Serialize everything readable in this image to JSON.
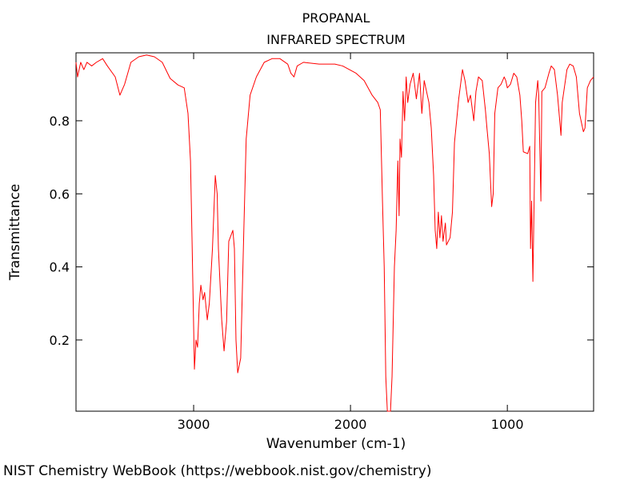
{
  "chart_data": {
    "type": "line",
    "title": "PROPANAL",
    "subtitle": "INFRARED SPECTRUM",
    "x_label": "Wavenumber (cm-1)",
    "y_label": "Transmittance",
    "source": "NIST Chemistry WebBook (https://webbook.nist.gov/chemistry)",
    "color": "#ff0000",
    "xlim": [
      3750,
      450
    ],
    "ylim": [
      0.005,
      0.986
    ],
    "xticks": [
      3000,
      2000,
      1000
    ],
    "yticks": [
      0.2,
      0.4,
      0.6,
      0.8
    ],
    "x": [
      3750,
      3740,
      3720,
      3700,
      3680,
      3650,
      3620,
      3580,
      3550,
      3500,
      3470,
      3440,
      3400,
      3350,
      3300,
      3250,
      3200,
      3150,
      3100,
      3060,
      3036,
      3020,
      3010,
      2995,
      2985,
      2975,
      2964,
      2954,
      2940,
      2930,
      2913,
      2900,
      2880,
      2862,
      2850,
      2842,
      2821,
      2806,
      2790,
      2776,
      2750,
      2740,
      2730,
      2719,
      2700,
      2680,
      2665,
      2640,
      2600,
      2550,
      2500,
      2450,
      2400,
      2380,
      2360,
      2340,
      2300,
      2200,
      2100,
      2050,
      1964,
      1913,
      1862,
      1826,
      1810,
      1796,
      1785,
      1775,
      1765,
      1745,
      1735,
      1720,
      1709,
      1698,
      1690,
      1684,
      1675,
      1665,
      1655,
      1645,
      1635,
      1620,
      1600,
      1580,
      1560,
      1545,
      1530,
      1500,
      1485,
      1470,
      1460,
      1450,
      1440,
      1430,
      1420,
      1410,
      1395,
      1388,
      1365,
      1350,
      1337,
      1310,
      1286,
      1270,
      1250,
      1235,
      1214,
      1200,
      1184,
      1160,
      1140,
      1130,
      1115,
      1100,
      1090,
      1080,
      1060,
      1040,
      1020,
      1010,
      1000,
      980,
      959,
      940,
      920,
      908,
      898,
      870,
      857,
      852,
      845,
      837,
      830,
      820,
      806,
      800,
      786,
      780,
      760,
      735,
      720,
      700,
      680,
      658,
      650,
      620,
      602,
      580,
      560,
      540,
      515,
      505,
      490,
      470,
      450
    ],
    "values": [
      0.96,
      0.92,
      0.96,
      0.94,
      0.96,
      0.95,
      0.96,
      0.97,
      0.95,
      0.92,
      0.87,
      0.9,
      0.96,
      0.975,
      0.98,
      0.975,
      0.96,
      0.916,
      0.898,
      0.89,
      0.82,
      0.69,
      0.47,
      0.12,
      0.2,
      0.18,
      0.3,
      0.35,
      0.31,
      0.33,
      0.255,
      0.3,
      0.45,
      0.65,
      0.6,
      0.45,
      0.255,
      0.17,
      0.25,
      0.47,
      0.5,
      0.45,
      0.2,
      0.11,
      0.15,
      0.5,
      0.75,
      0.87,
      0.92,
      0.96,
      0.97,
      0.97,
      0.955,
      0.93,
      0.92,
      0.95,
      0.96,
      0.955,
      0.955,
      0.95,
      0.93,
      0.91,
      0.87,
      0.85,
      0.83,
      0.58,
      0.4,
      0.1,
      0.005,
      0.005,
      0.1,
      0.4,
      0.5,
      0.69,
      0.54,
      0.75,
      0.7,
      0.88,
      0.8,
      0.92,
      0.85,
      0.9,
      0.93,
      0.86,
      0.93,
      0.82,
      0.91,
      0.85,
      0.78,
      0.65,
      0.5,
      0.45,
      0.55,
      0.48,
      0.54,
      0.47,
      0.52,
      0.46,
      0.48,
      0.55,
      0.74,
      0.86,
      0.94,
      0.91,
      0.85,
      0.87,
      0.8,
      0.88,
      0.92,
      0.91,
      0.83,
      0.78,
      0.71,
      0.565,
      0.6,
      0.82,
      0.89,
      0.9,
      0.92,
      0.91,
      0.89,
      0.9,
      0.93,
      0.92,
      0.87,
      0.8,
      0.715,
      0.71,
      0.73,
      0.45,
      0.58,
      0.36,
      0.56,
      0.85,
      0.91,
      0.87,
      0.58,
      0.88,
      0.89,
      0.93,
      0.95,
      0.94,
      0.87,
      0.76,
      0.85,
      0.94,
      0.955,
      0.95,
      0.92,
      0.82,
      0.77,
      0.78,
      0.89,
      0.91,
      0.92
    ]
  }
}
